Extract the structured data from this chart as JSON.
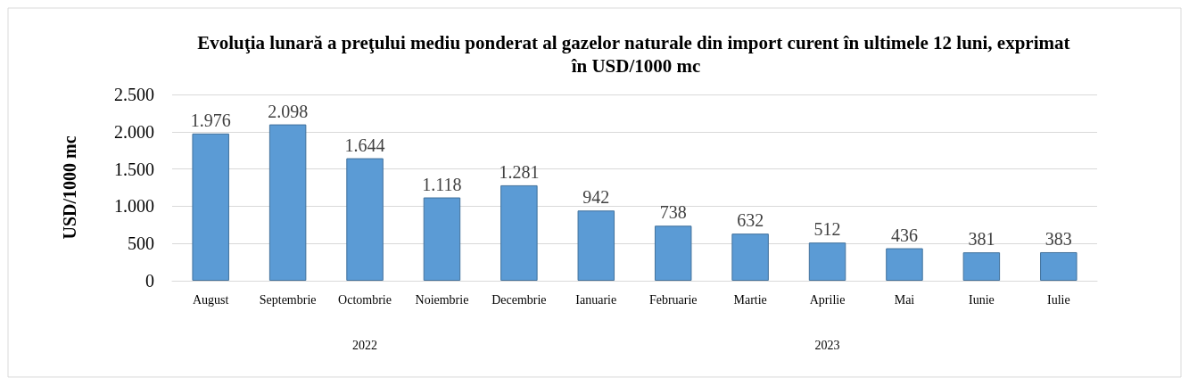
{
  "chart_data": {
    "type": "bar",
    "title": "Evoluţia lunară a preţului mediu ponderat al gazelor naturale din import curent în ultimele 12 luni, exprimat în USD/1000 mc",
    "ylabel": "USD/1000 mc",
    "categories": [
      "August",
      "Septembrie",
      "Octombrie",
      "Noiembrie",
      "Decembrie",
      "Ianuarie",
      "Februarie",
      "Martie",
      "Aprilie",
      "Mai",
      "Iunie",
      "Iulie"
    ],
    "values": [
      1976,
      2098,
      1644,
      1118,
      1281,
      942,
      738,
      632,
      512,
      436,
      381,
      383
    ],
    "value_labels": [
      "1.976",
      "2.098",
      "1.644",
      "1.118",
      "1.281",
      "942",
      "738",
      "632",
      "512",
      "436",
      "381",
      "383"
    ],
    "color": "#5b9bd5",
    "ylim": [
      0,
      2500
    ],
    "yticks": [
      {
        "value": 0,
        "label": "0"
      },
      {
        "value": 500,
        "label": "500"
      },
      {
        "value": 1000,
        "label": "1.000"
      },
      {
        "value": 1500,
        "label": "1.500"
      },
      {
        "value": 2000,
        "label": "2.000"
      },
      {
        "value": 2500,
        "label": "2.500"
      }
    ],
    "grid": "y",
    "annotations": [
      "2022",
      "2023"
    ]
  }
}
